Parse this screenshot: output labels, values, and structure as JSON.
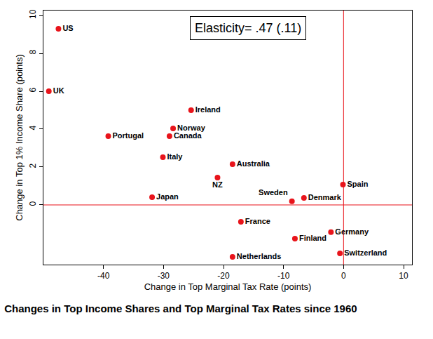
{
  "chart_data": {
    "type": "scatter",
    "title": "Changes in Top Income Shares and Top Marginal Tax Rates since 1960",
    "x_label": "Change in Top Marginal Tax Rate (points)",
    "y_label": "Change in Top 1% Income Share (points)",
    "annotation": "Elasticity= .47 (.11)",
    "labels": [
      "US",
      "UK",
      "Ireland",
      "Norway",
      "Canada",
      "Portugal",
      "Italy",
      "Australia",
      "NZ",
      "Japan",
      "Spain",
      "Sweden",
      "Denmark",
      "France",
      "Germany",
      "Finland",
      "Switzerland",
      "Netherlands"
    ],
    "x": [
      -47.5,
      -49.1,
      -25.4,
      -28.4,
      -29.0,
      -39.2,
      -30.1,
      -18.5,
      -21.0,
      -31.9,
      -0.1,
      -8.6,
      -6.6,
      -17.1,
      -2.1,
      -8.1,
      -0.6,
      -18.5
    ],
    "values": [
      9.3,
      6.0,
      5.0,
      4.04,
      3.63,
      3.63,
      2.52,
      2.15,
      1.44,
      0.41,
      1.07,
      0.19,
      0.37,
      -0.89,
      -1.44,
      -1.78,
      -2.56,
      -2.74
    ],
    "color": "#e8141b",
    "marker": "circle",
    "reference_lines": {
      "x": 0,
      "y": 0,
      "color": "#e8141b"
    },
    "xlim": [
      -50,
      11.4
    ],
    "ylim": [
      -3.15,
      10.26
    ],
    "xticks": [
      -40,
      -30,
      -20,
      -10,
      0,
      10
    ],
    "yticks": [
      0,
      2,
      4,
      6,
      8,
      10
    ],
    "grid": false
  }
}
